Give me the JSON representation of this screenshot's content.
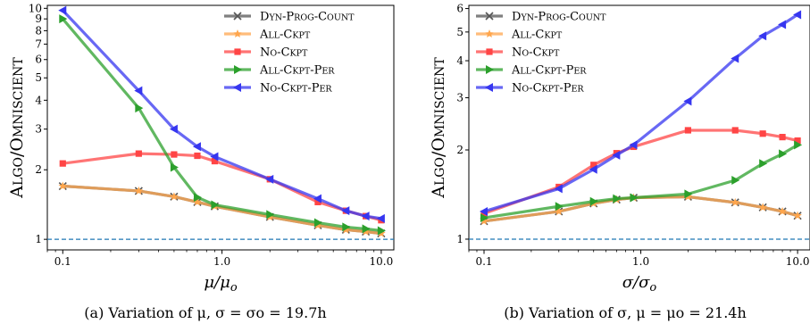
{
  "chart_data": [
    {
      "type": "line",
      "panel": "a",
      "caption": "(a) Variation of μ, σ = σo = 19.7h",
      "xlabel": "μ/μo",
      "ylabel": "Algo/Omniscient",
      "xscale": "log",
      "yscale": "log",
      "xlim": [
        0.08,
        12
      ],
      "ylim": [
        0.9,
        10.3
      ],
      "xticks": [
        0.1,
        1.0,
        10.0
      ],
      "xtick_labels": [
        "0.1",
        "1.0",
        "10.0"
      ],
      "yticks": [
        1,
        2,
        3,
        4,
        5,
        6,
        7,
        8,
        9,
        10
      ],
      "ytick_labels": [
        "1",
        "2",
        "3",
        "4",
        "5",
        "6",
        "7",
        "8",
        "9",
        "10"
      ],
      "reference_line": {
        "y": 1.0,
        "style": "dashed",
        "color": "#1f77b4"
      },
      "legend_position": "top-right",
      "x": [
        0.1,
        0.3,
        0.5,
        0.7,
        0.9,
        2.0,
        4.0,
        6.0,
        8.0,
        10.0
      ],
      "series": [
        {
          "name": "Dyn-Prog-Count",
          "color": "#555555",
          "marker": "x",
          "values": [
            1.7,
            1.62,
            1.53,
            1.45,
            1.39,
            1.25,
            1.15,
            1.1,
            1.08,
            1.06
          ]
        },
        {
          "name": "All-Ckpt",
          "color": "#ffa64d",
          "marker": "star",
          "values": [
            1.7,
            1.62,
            1.53,
            1.45,
            1.39,
            1.25,
            1.15,
            1.1,
            1.08,
            1.06
          ]
        },
        {
          "name": "No-Ckpt",
          "color": "#ff4545",
          "marker": "square",
          "values": [
            2.13,
            2.35,
            2.33,
            2.3,
            2.18,
            1.82,
            1.45,
            1.33,
            1.26,
            1.21
          ]
        },
        {
          "name": "All-Ckpt-Per",
          "color": "#2ca02c",
          "marker": "triangle-right",
          "values": [
            9.0,
            3.7,
            2.05,
            1.52,
            1.41,
            1.28,
            1.18,
            1.13,
            1.11,
            1.09
          ]
        },
        {
          "name": "No-Ckpt-Per",
          "color": "#3636f0",
          "marker": "triangle-left",
          "values": [
            9.8,
            4.4,
            3.0,
            2.52,
            2.28,
            1.82,
            1.5,
            1.33,
            1.26,
            1.23
          ]
        }
      ]
    },
    {
      "type": "line",
      "panel": "b",
      "caption": "(b) Variation of σ, μ = μo = 21.4h",
      "xlabel": "σ/σo",
      "ylabel": "Algo/Omniscient",
      "xscale": "log",
      "yscale": "log",
      "xlim": [
        0.08,
        12
      ],
      "ylim": [
        0.92,
        6.15
      ],
      "xticks": [
        0.1,
        1.0,
        10.0
      ],
      "xtick_labels": [
        "0.1",
        "1.0",
        "10.0"
      ],
      "yticks": [
        1,
        2,
        3,
        4,
        5,
        6
      ],
      "ytick_labels": [
        "1",
        "2",
        "3",
        "4",
        "5",
        "6"
      ],
      "reference_line": {
        "y": 1.0,
        "style": "dashed",
        "color": "#1f77b4"
      },
      "legend_position": "top-left",
      "x": [
        0.1,
        0.3,
        0.5,
        0.7,
        0.9,
        2.0,
        4.0,
        6.0,
        8.0,
        10.0
      ],
      "series": [
        {
          "name": "Dyn-Prog-Count",
          "color": "#555555",
          "marker": "x",
          "values": [
            1.15,
            1.24,
            1.32,
            1.36,
            1.38,
            1.39,
            1.33,
            1.28,
            1.24,
            1.2
          ]
        },
        {
          "name": "All-Ckpt",
          "color": "#ffa64d",
          "marker": "star",
          "values": [
            1.15,
            1.24,
            1.32,
            1.36,
            1.38,
            1.39,
            1.33,
            1.28,
            1.24,
            1.2
          ]
        },
        {
          "name": "No-Ckpt",
          "color": "#ff4545",
          "marker": "square",
          "values": [
            1.22,
            1.5,
            1.78,
            1.95,
            2.05,
            2.33,
            2.33,
            2.27,
            2.21,
            2.15
          ]
        },
        {
          "name": "All-Ckpt-Per",
          "color": "#2ca02c",
          "marker": "triangle-right",
          "values": [
            1.18,
            1.29,
            1.34,
            1.37,
            1.38,
            1.42,
            1.58,
            1.8,
            1.94,
            2.08
          ]
        },
        {
          "name": "No-Ckpt-Per",
          "color": "#3636f0",
          "marker": "triangle-left",
          "values": [
            1.24,
            1.48,
            1.72,
            1.92,
            2.08,
            2.92,
            4.07,
            4.85,
            5.3,
            5.72
          ]
        }
      ]
    }
  ]
}
